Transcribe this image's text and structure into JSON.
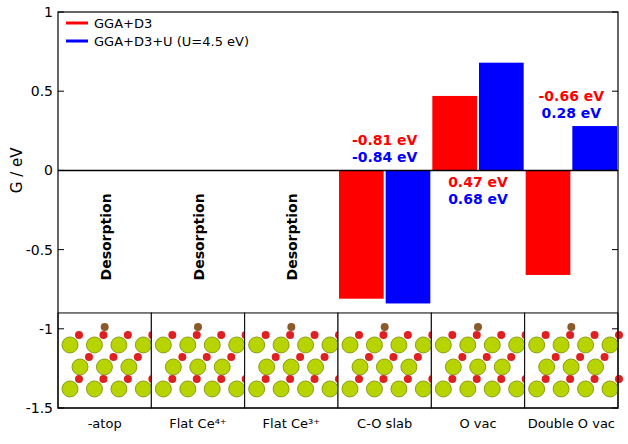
{
  "chart_data": {
    "type": "bar",
    "categories": [
      "-atop",
      "Flat Ce⁴⁺",
      "Flat Ce³⁺",
      "C-O slab",
      "O vac",
      "Double O vac"
    ],
    "series": [
      {
        "name": "GGA+D3",
        "color": "#ff0000",
        "values": [
          null,
          null,
          null,
          -0.81,
          0.47,
          -0.66
        ],
        "value_labels": [
          null,
          null,
          null,
          "-0.81 eV",
          "0.47 eV",
          "-0.66 eV"
        ]
      },
      {
        "name": "GGA+D3+U (U=4.5 eV)",
        "color": "#0000ff",
        "values": [
          null,
          null,
          null,
          -0.84,
          0.68,
          0.28
        ],
        "value_labels": [
          null,
          null,
          null,
          "-0.84 eV",
          "0.68 eV",
          "0.28 eV"
        ]
      }
    ],
    "annotations": [
      "Desorption",
      "Desorption",
      "Desorption",
      null,
      null,
      null
    ],
    "y_label": "G / eV",
    "ylim": [
      -1.5,
      1
    ],
    "yticks": [
      -1.5,
      -1,
      -0.5,
      0,
      0.5,
      1
    ],
    "legend": "upper left",
    "data_labels": true,
    "grid": false
  }
}
